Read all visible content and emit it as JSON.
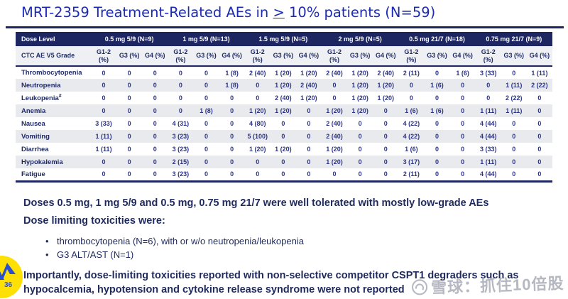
{
  "slide": {
    "title_prefix": "MRT-2359 Treatment-Related AEs in",
    "title_symbol": ">",
    "title_suffix": "10% patients (N=59)"
  },
  "table": {
    "corner_header": "Dose Level",
    "sub_corner_header": "CTC AE V5 Grade",
    "dose_groups": [
      "0.5 mg 5/9 (N=9)",
      "1 mg 5/9 (N=13)",
      "1.5 mg 5/9 (N=5)",
      "2 mg 5/9 (N=5)",
      "0.5 mg 21/7 (N=18)",
      "0.75 mg 21/7 (N=9)"
    ],
    "grade_columns": [
      "G1-2 (%)",
      "G3 (%)",
      "G4 (%)"
    ],
    "rows": [
      {
        "label": "Thrombocytopenia",
        "sup": "",
        "values": [
          "0",
          "0",
          "0",
          "0",
          "0",
          "1 (8)",
          "2 (40)",
          "1 (20)",
          "1 (20)",
          "2 (40)",
          "1 (20)",
          "2 (40)",
          "2 (11)",
          "0",
          "1 (6)",
          "3 (33)",
          "0",
          "1 (11)"
        ]
      },
      {
        "label": "Neutropenia",
        "sup": "",
        "values": [
          "0",
          "0",
          "0",
          "0",
          "0",
          "1 (8)",
          "0",
          "1 (20)",
          "2 (40)",
          "0",
          "1 (20)",
          "1 (20)",
          "0",
          "1 (6)",
          "0",
          "0",
          "1 (11)",
          "2 (22)"
        ]
      },
      {
        "label": "Leukopenia",
        "sup": "#",
        "values": [
          "0",
          "0",
          "0",
          "0",
          "0",
          "0",
          "0",
          "2 (40)",
          "1 (20)",
          "0",
          "1 (20)",
          "1 (20)",
          "0",
          "0",
          "0",
          "0",
          "2 (22)",
          "0"
        ]
      },
      {
        "label": "Anemia",
        "sup": "",
        "values": [
          "0",
          "0",
          "0",
          "0",
          "1 (8)",
          "0",
          "1 (20)",
          "1 (20)",
          "0",
          "1 (20)",
          "1 (20)",
          "0",
          "1 (6)",
          "1 (6)",
          "0",
          "1 (11)",
          "1 (11)",
          "0"
        ]
      },
      {
        "label": "Nausea",
        "sup": "",
        "values": [
          "3 (33)",
          "0",
          "0",
          "4 (31)",
          "0",
          "0",
          "4 (80)",
          "0",
          "0",
          "2 (40)",
          "0",
          "0",
          "4 (22)",
          "0",
          "0",
          "4 (44)",
          "0",
          "0"
        ]
      },
      {
        "label": "Vomiting",
        "sup": "",
        "values": [
          "1 (11)",
          "0",
          "0",
          "3 (23)",
          "0",
          "0",
          "5 (100)",
          "0",
          "0",
          "2 (40)",
          "0",
          "0",
          "4 (22)",
          "0",
          "0",
          "4 (44)",
          "0",
          "0"
        ]
      },
      {
        "label": "Diarrhea",
        "sup": "",
        "values": [
          "1 (11)",
          "0",
          "0",
          "3 (23)",
          "0",
          "0",
          "1 (20)",
          "1 (20)",
          "0",
          "1 (20)",
          "0",
          "0",
          "1 (6)",
          "0",
          "0",
          "3 (33)",
          "0",
          "0"
        ]
      },
      {
        "label": "Hypokalemia",
        "sup": "",
        "values": [
          "0",
          "0",
          "0",
          "2 (15)",
          "0",
          "0",
          "0",
          "0",
          "0",
          "1 (20)",
          "0",
          "0",
          "3 (17)",
          "0",
          "0",
          "1 (11)",
          "0",
          "0"
        ]
      },
      {
        "label": "Fatigue",
        "sup": "",
        "values": [
          "0",
          "0",
          "0",
          "3 (23)",
          "0",
          "0",
          "0",
          "0",
          "0",
          "0",
          "0",
          "0",
          "2 (11)",
          "0",
          "0",
          "4 (44)",
          "0",
          "0"
        ]
      }
    ]
  },
  "summary": {
    "line1": "Doses 0.5 mg, 1 mg 5/9 and 0.5 mg, 0.75 mg 21/7 were well tolerated with mostly low-grade AEs",
    "line2": "Dose limiting toxicities were:",
    "bullet_char": "•",
    "bullets": [
      "thrombocytopenia (N=6), with or w/o neutropenia/leukopenia",
      "G3 ALT/AST (N=1)"
    ],
    "closing": "Importantly, dose-limiting toxicities reported with non-selective competitor CSPT1 degraders such as hypocalcemia, hypotension and cytokine release syndrome were not reported"
  },
  "watermark": {
    "text": "雪球：抓住10倍股"
  },
  "badge": {
    "number": "36"
  },
  "colors": {
    "title_blue": "#1c2bb4",
    "navy": "#1e2661",
    "table_text": "#2c3488",
    "stripe_gray": "#e9eaee",
    "subheader_gray": "#eef0f3",
    "badge_yellow": "#ffe005",
    "badge_blue": "#2a4fd0",
    "watermark_gray": "#a8acb6"
  }
}
